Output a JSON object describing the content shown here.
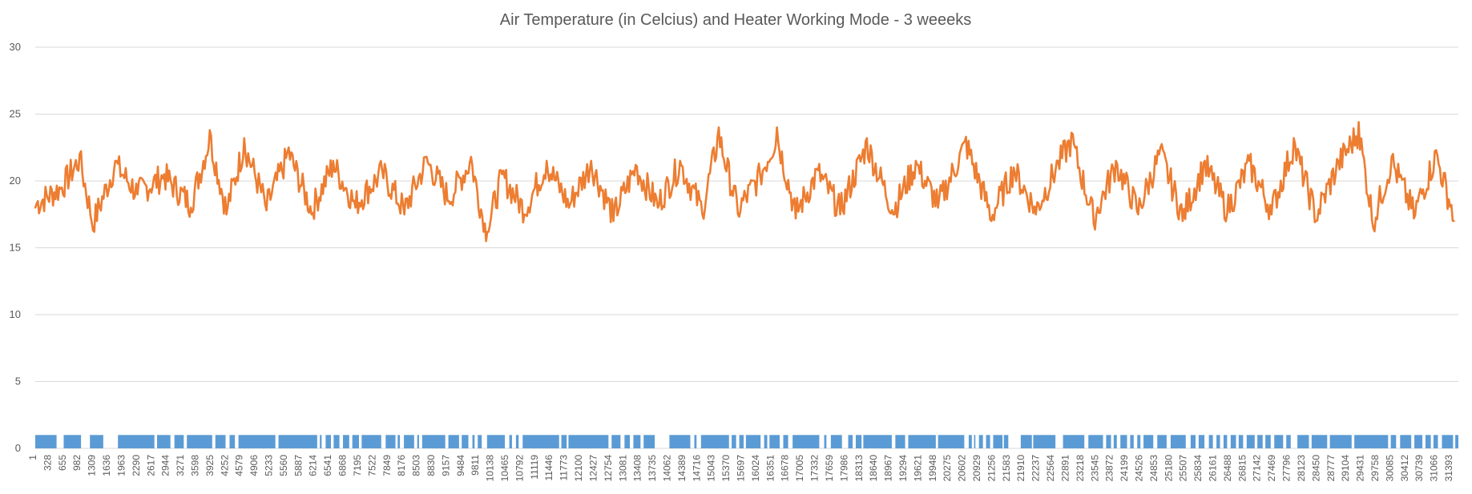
{
  "chart_data": {
    "type": "line",
    "title": "Air Temperature (in Celcius) and Heater Working Mode - 3 weeeks",
    "xlabel": "",
    "ylabel": "",
    "ylim": [
      0,
      30
    ],
    "y_ticks": [
      0,
      5,
      10,
      15,
      20,
      25,
      30
    ],
    "grid": true,
    "legend": "none",
    "x_range": [
      1,
      32000
    ],
    "x_tick_labels": [
      "1",
      "328",
      "655",
      "982",
      "1309",
      "1636",
      "1963",
      "2290",
      "2617",
      "2944",
      "3271",
      "3598",
      "3925",
      "4252",
      "4579",
      "4906",
      "5233",
      "5560",
      "5887",
      "6214",
      "6541",
      "6868",
      "7195",
      "7522",
      "7849",
      "8176",
      "8503",
      "8830",
      "9157",
      "9484",
      "9811",
      "10138",
      "10465",
      "10792",
      "11119",
      "11446",
      "11773",
      "12100",
      "12427",
      "12754",
      "13081",
      "13408",
      "13735",
      "14062",
      "14389",
      "14716",
      "15043",
      "15370",
      "15697",
      "16024",
      "16351",
      "16678",
      "17005",
      "17332",
      "17659",
      "17986",
      "18313",
      "18640",
      "18967",
      "19294",
      "19621",
      "19948",
      "20275",
      "20602",
      "20929",
      "21256",
      "21583",
      "21910",
      "22237",
      "22564",
      "22891",
      "23218",
      "23545",
      "23872",
      "24199",
      "24526",
      "24853",
      "25180",
      "25507",
      "25834",
      "26161",
      "26488",
      "26815",
      "27142",
      "27469",
      "27796",
      "28123",
      "28450",
      "28777",
      "29104",
      "29431",
      "29758",
      "30085",
      "30412",
      "30739",
      "31066",
      "31393"
    ],
    "series": [
      {
        "color": "#ED7D31",
        "kind": "line",
        "x": [
          1,
          600,
          1000,
          1300,
          1800,
          2300,
          2900,
          3500,
          3925,
          4300,
          4700,
          5200,
          5700,
          6214,
          6700,
          7200,
          7800,
          8300,
          8800,
          9300,
          9800,
          10138,
          10500,
          11000,
          11500,
          12000,
          12500,
          13000,
          13500,
          14000,
          14500,
          15000,
          15370,
          15800,
          16300,
          16678,
          17100,
          17600,
          18100,
          18700,
          19294,
          19800,
          20300,
          20929,
          21500,
          22000,
          22500,
          23000,
          23300,
          23800,
          24300,
          24800,
          25300,
          25800,
          26300,
          26800,
          27300,
          27800,
          28300,
          28800,
          29300,
          29758,
          30085,
          30500,
          31000,
          31500,
          31900
        ],
        "y": [
          18,
          19.5,
          22,
          16.3,
          21.5,
          19,
          20.5,
          18,
          23.8,
          17.5,
          23.2,
          17.8,
          22.5,
          17.5,
          21.5,
          18,
          20.8,
          17.5,
          21.8,
          18.5,
          21.8,
          15.5,
          20.5,
          17.5,
          21.5,
          18,
          21.5,
          17,
          21.2,
          18,
          21.5,
          17.5,
          24,
          17.5,
          20.5,
          24,
          17.2,
          20.8,
          17.5,
          23.2,
          17.5,
          21.5,
          18,
          23.3,
          17,
          21,
          17.5,
          21.5,
          23.6,
          16.8,
          21.5,
          17.5,
          22.5,
          17,
          21.5,
          17.5,
          21.5,
          17.5,
          23.2,
          17,
          21.5,
          24.4,
          16.5,
          21.8,
          17.2,
          22.3,
          17
        ]
      },
      {
        "color": "#5B9BD5",
        "kind": "column",
        "on_value": 1,
        "on_intervals": [
          [
            1,
            480
          ],
          [
            640,
            1030
          ],
          [
            1230,
            1530
          ],
          [
            1860,
            2680
          ],
          [
            2740,
            3040
          ],
          [
            3130,
            3340
          ],
          [
            3410,
            3980
          ],
          [
            4050,
            4280
          ],
          [
            4370,
            4490
          ],
          [
            4570,
            5400
          ],
          [
            5470,
            6340
          ],
          [
            6400,
            6440
          ],
          [
            6530,
            6650
          ],
          [
            6710,
            6840
          ],
          [
            6920,
            7060
          ],
          [
            7130,
            7280
          ],
          [
            7340,
            7780
          ],
          [
            7880,
            8100
          ],
          [
            8150,
            8200
          ],
          [
            8290,
            8520
          ],
          [
            8590,
            8630
          ],
          [
            8700,
            9220
          ],
          [
            9290,
            9530
          ],
          [
            9590,
            9740
          ],
          [
            9830,
            9880
          ],
          [
            9950,
            10040
          ],
          [
            10160,
            10560
          ],
          [
            10660,
            10720
          ],
          [
            10810,
            10870
          ],
          [
            10960,
            11780
          ],
          [
            11830,
            11950
          ],
          [
            11990,
            12890
          ],
          [
            12960,
            13160
          ],
          [
            13250,
            13370
          ],
          [
            13450,
            13610
          ],
          [
            13680,
            13930
          ],
          [
            14260,
            14730
          ],
          [
            14820,
            14870
          ],
          [
            14970,
            15600
          ],
          [
            15660,
            15760
          ],
          [
            15830,
            15930
          ],
          [
            15980,
            16310
          ],
          [
            16390,
            16460
          ],
          [
            16510,
            16740
          ],
          [
            16820,
            16930
          ],
          [
            17030,
            17630
          ],
          [
            17740,
            17790
          ],
          [
            17890,
            18140
          ],
          [
            18280,
            18380
          ],
          [
            18450,
            18580
          ],
          [
            18620,
            19260
          ],
          [
            19340,
            19560
          ],
          [
            19630,
            20250
          ],
          [
            20300,
            20890
          ],
          [
            20990,
            21060
          ],
          [
            21110,
            21140
          ],
          [
            21220,
            21310
          ],
          [
            21380,
            21470
          ],
          [
            21540,
            21750
          ],
          [
            21780,
            21880
          ],
          [
            22160,
            22410
          ],
          [
            22440,
            22940
          ],
          [
            23110,
            23590
          ],
          [
            23680,
            24010
          ],
          [
            24080,
            24190
          ],
          [
            24250,
            24320
          ],
          [
            24400,
            24550
          ],
          [
            24620,
            24700
          ],
          [
            24780,
            24850
          ],
          [
            24920,
            25140
          ],
          [
            25230,
            25440
          ],
          [
            25530,
            25870
          ],
          [
            25980,
            26090
          ],
          [
            26160,
            26290
          ],
          [
            26390,
            26480
          ],
          [
            26560,
            26640
          ],
          [
            26720,
            26800
          ],
          [
            26880,
            27000
          ],
          [
            27060,
            27160
          ],
          [
            27240,
            27420
          ],
          [
            27480,
            27600
          ],
          [
            27660,
            27780
          ],
          [
            27860,
            28060
          ],
          [
            28130,
            28230
          ],
          [
            28380,
            28640
          ],
          [
            28700,
            29050
          ],
          [
            29110,
            29600
          ],
          [
            29660,
            30420
          ],
          [
            30480,
            30600
          ],
          [
            30690,
            30940
          ],
          [
            31010,
            31190
          ],
          [
            31260,
            31380
          ],
          [
            31440,
            31540
          ],
          [
            31630,
            31880
          ],
          [
            31930,
            32000
          ]
        ]
      }
    ]
  }
}
